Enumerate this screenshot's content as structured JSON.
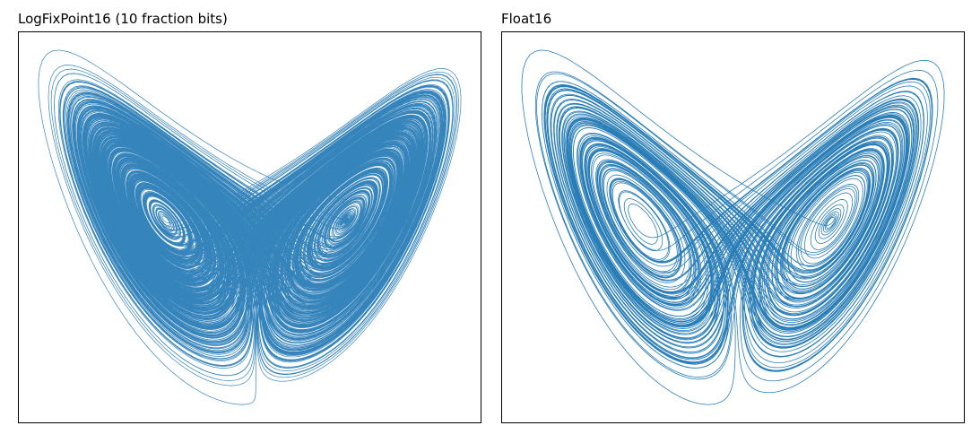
{
  "chart_data": [
    {
      "type": "line",
      "title": "LogFixPoint16 (10 fraction bits)",
      "xlabel": "",
      "ylabel": "",
      "grid": false,
      "axis_ticks": false,
      "series": [
        {
          "color": "#1f77b4",
          "x": [],
          "y": []
        }
      ]
    },
    {
      "type": "line",
      "title": "Float16",
      "xlabel": "",
      "ylabel": "",
      "grid": false,
      "axis_ticks": false,
      "series": [
        {
          "color": "#1f77b4",
          "x": [],
          "y": []
        }
      ]
    }
  ]
}
